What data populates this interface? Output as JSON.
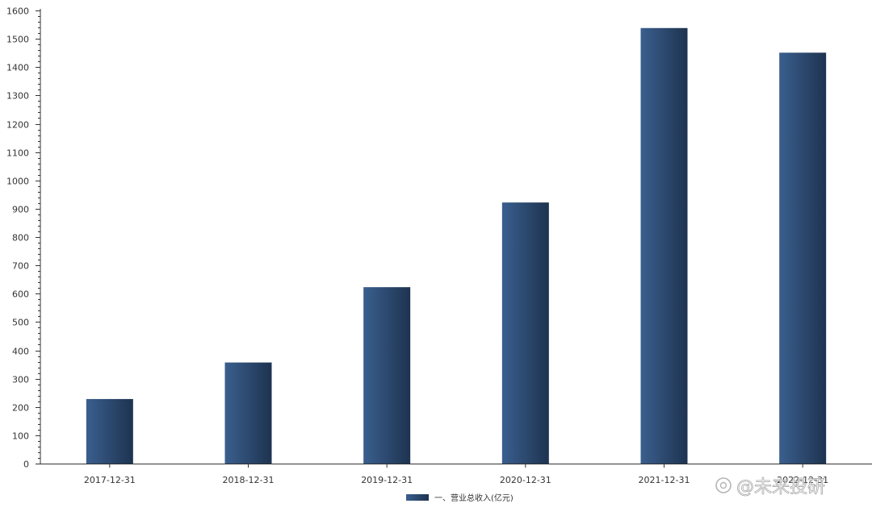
{
  "chart_data": {
    "type": "bar",
    "categories": [
      "2017-12-31",
      "2018-12-31",
      "2019-12-31",
      "2020-12-31",
      "2021-12-31",
      "2022-12-31"
    ],
    "series": [
      {
        "name": "一、营业总收入(亿元)",
        "values": [
          228,
          357,
          623,
          922,
          1538,
          1451
        ]
      }
    ],
    "ylim": [
      0,
      1600
    ],
    "yticks": [
      0,
      100,
      200,
      300,
      400,
      500,
      600,
      700,
      800,
      900,
      1000,
      1100,
      1200,
      1300,
      1400,
      1500,
      1600
    ],
    "grid": false,
    "legend_position": "bottom-center",
    "colors": {
      "bar_light": "#3a5f8e",
      "bar_dark": "#1e3350",
      "axis": "#333333"
    }
  },
  "watermark": {
    "text": "@未来投研"
  }
}
